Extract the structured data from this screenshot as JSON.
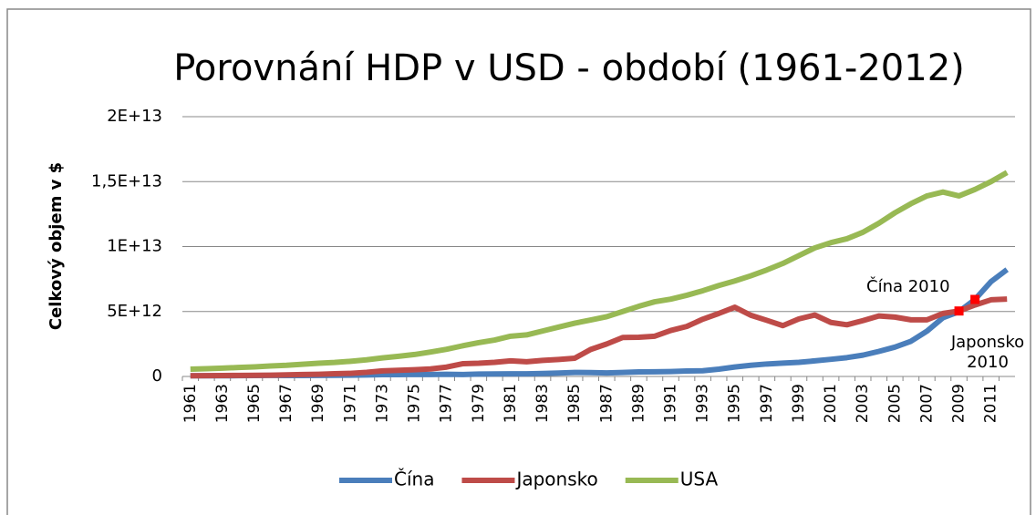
{
  "chart_data": {
    "type": "line",
    "title": "Porovnání HDP v USD - období (1961-2012)",
    "y_label": "Celkový objem v $",
    "categories": [
      "1961",
      null,
      "1963",
      null,
      "1965",
      null,
      "1967",
      null,
      "1969",
      null,
      "1971",
      null,
      "1973",
      null,
      "1975",
      null,
      "1977",
      null,
      "1979",
      null,
      "1981",
      null,
      "1983",
      null,
      "1985",
      null,
      "1987",
      null,
      "1989",
      null,
      "1991",
      null,
      "1993",
      null,
      "1995",
      null,
      "1997",
      null,
      "1999",
      null,
      "2001",
      null,
      "2003",
      null,
      "2005",
      null,
      "2007",
      null,
      "2009",
      null,
      "2011",
      null
    ],
    "series": [
      {
        "name": "Čína",
        "color": "#4a7ebb",
        "values": [
          50000000000.0,
          50000000000.0,
          50000000000.0,
          60000000000.0,
          70000000000.0,
          80000000000.0,
          70000000000.0,
          70000000000.0,
          80000000000.0,
          90000000000.0,
          100000000000.0,
          110000000000.0,
          140000000000.0,
          140000000000.0,
          160000000000.0,
          150000000000.0,
          170000000000.0,
          150000000000.0,
          180000000000.0,
          190000000000.0,
          200000000000.0,
          200000000000.0,
          230000000000.0,
          260000000000.0,
          310000000000.0,
          300000000000.0,
          270000000000.0,
          310000000000.0,
          350000000000.0,
          360000000000.0,
          380000000000.0,
          420000000000.0,
          440000000000.0,
          560000000000.0,
          730000000000.0,
          860000000000.0,
          960000000000.0,
          1030000000000.0,
          1090000000000.0,
          1200000000000.0,
          1320000000000.0,
          1450000000000.0,
          1640000000000.0,
          1930000000000.0,
          2260000000000.0,
          2710000000000.0,
          3490000000000.0,
          4520000000000.0,
          4990000000000.0,
          5930000000000.0,
          7300000000000.0,
          8230000000000.0
        ]
      },
      {
        "name": "Japonsko",
        "color": "#be4b48",
        "values": [
          50000000000.0,
          60000000000.0,
          70000000000.0,
          80000000000.0,
          90000000000.0,
          100000000000.0,
          120000000000.0,
          150000000000.0,
          170000000000.0,
          210000000000.0,
          240000000000.0,
          320000000000.0,
          430000000000.0,
          470000000000.0,
          520000000000.0,
          580000000000.0,
          720000000000.0,
          980000000000.0,
          1020000000000.0,
          1090000000000.0,
          1200000000000.0,
          1130000000000.0,
          1240000000000.0,
          1310000000000.0,
          1400000000000.0,
          2080000000000.0,
          2500000000000.0,
          3000000000000.0,
          3020000000000.0,
          3100000000000.0,
          3540000000000.0,
          3850000000000.0,
          4410000000000.0,
          4850000000000.0,
          5330000000000.0,
          4710000000000.0,
          4320000000000.0,
          3910000000000.0,
          4430000000000.0,
          4730000000000.0,
          4160000000000.0,
          3980000000000.0,
          4300000000000.0,
          4660000000000.0,
          4570000000000.0,
          4360000000000.0,
          4360000000000.0,
          4850000000000.0,
          5040000000000.0,
          5500000000000.0,
          5900000000000.0,
          5960000000000.0
        ]
      },
      {
        "name": "USA",
        "color": "#98b954",
        "values": [
          560000000000.0,
          600000000000.0,
          640000000000.0,
          690000000000.0,
          740000000000.0,
          810000000000.0,
          860000000000.0,
          940000000000.0,
          1020000000000.0,
          1080000000000.0,
          1170000000000.0,
          1280000000000.0,
          1430000000000.0,
          1550000000000.0,
          1690000000000.0,
          1880000000000.0,
          2090000000000.0,
          2360000000000.0,
          2600000000000.0,
          2800000000000.0,
          3100000000000.0,
          3200000000000.0,
          3500000000000.0,
          3800000000000.0,
          4100000000000.0,
          4350000000000.0,
          4600000000000.0,
          5000000000000.0,
          5400000000000.0,
          5750000000000.0,
          5950000000000.0,
          6250000000000.0,
          6600000000000.0,
          7000000000000.0,
          7350000000000.0,
          7750000000000.0,
          8200000000000.0,
          8700000000000.0,
          9300000000000.0,
          9900000000000.0,
          10300000000000.0,
          10600000000000.0,
          11100000000000.0,
          11800000000000.0,
          12600000000000.0,
          13300000000000.0,
          13900000000000.0,
          14200000000000.0,
          13900000000000.0,
          14400000000000.0,
          15000000000000.0,
          15700000000000.0
        ]
      }
    ],
    "annotations": [
      {
        "text": "Čína 2010",
        "series": 0,
        "index": 49
      },
      {
        "text": "Japonsko 2010",
        "series": 1,
        "index": 48
      }
    ],
    "ylim": [
      0,
      20000000000000.0
    ],
    "yticks": [
      0,
      {
        "value": 5000000000000.0,
        "label": "5E+12"
      },
      {
        "value": 10000000000000.0,
        "label": "1E+13"
      },
      {
        "value": 15000000000000.0,
        "label": "1,5E+13"
      },
      {
        "value": 20000000000000.0,
        "label": "2E+13"
      }
    ],
    "grid": true,
    "legend": "bottom"
  }
}
